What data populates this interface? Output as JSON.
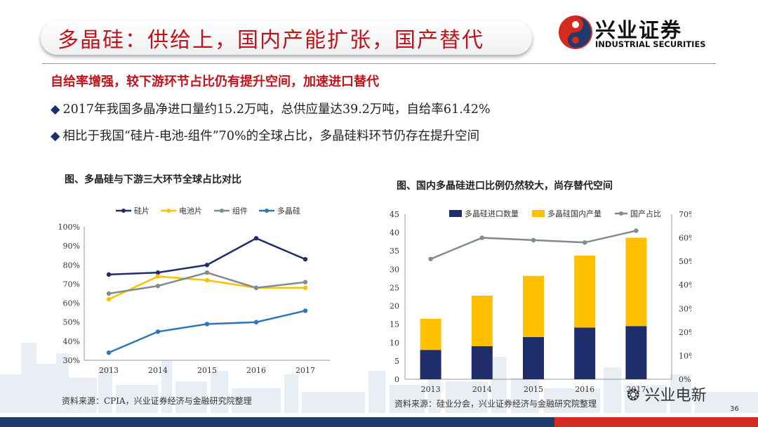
{
  "header": {
    "title": "多晶硅：供给上，国内产能扩张，国产替代",
    "logo_cn": "兴业证券",
    "logo_en": "INDUSTRIAL SECURITIES"
  },
  "subtitle": "自给率增强，较下游环节占比仍有提升空间，加速进口替代",
  "bullets": [
    "2017年我国多晶净进口量约15.2万吨，总供应量达39.2万吨，自给率61.42%",
    "相比于我国“硅片-电池-组件”70%的全球占比，多晶硅料环节仍存在提升空间"
  ],
  "colors": {
    "brand_red": "#c0141b",
    "navy": "#1f2d6b",
    "yellow": "#ffc000",
    "gray": "#7f8c8d",
    "teal": "#2e75b6"
  },
  "icons": {
    "bullet": "diamond-icon",
    "wechat": "wechat-icon"
  },
  "chart_data": [
    {
      "type": "line",
      "title": "图、多晶硅与下游三大环节全球占比对比",
      "x": [
        "2013",
        "2014",
        "2015",
        "2016",
        "2017"
      ],
      "ylim": [
        0.3,
        1.0
      ],
      "yticks": [
        "30%",
        "40%",
        "50%",
        "60%",
        "70%",
        "80%",
        "90%",
        "100%"
      ],
      "legend_position": "top",
      "series": [
        {
          "name": "硅片",
          "color": "#1f2d6b",
          "values": [
            0.75,
            0.76,
            0.8,
            0.94,
            0.83
          ]
        },
        {
          "name": "电池片",
          "color": "#ffc000",
          "values": [
            0.62,
            0.74,
            0.72,
            0.68,
            0.68
          ]
        },
        {
          "name": "组件",
          "color": "#7f8c8d",
          "values": [
            0.65,
            0.69,
            0.76,
            0.68,
            0.71
          ]
        },
        {
          "name": "多晶硅",
          "color": "#2e75b6",
          "values": [
            0.34,
            0.45,
            0.49,
            0.5,
            0.56
          ]
        }
      ],
      "source": "资料来源：CPIA，兴业证券经济与金融研究院整理"
    },
    {
      "type": "bar",
      "stacked": true,
      "title": "图、国内多晶硅进口比例仍然较大，尚存替代空间",
      "categories": [
        "2013",
        "2014",
        "2015",
        "2016",
        "2017"
      ],
      "ylim": [
        0,
        45
      ],
      "yticks": [
        "0",
        "5",
        "10",
        "15",
        "20",
        "25",
        "30",
        "35",
        "40",
        "45"
      ],
      "y2lim": [
        0,
        0.7
      ],
      "y2ticks": [
        "0%",
        "10%",
        "20%",
        "30%",
        "40%",
        "50%",
        "60%",
        "70%"
      ],
      "legend_position": "top",
      "series": [
        {
          "name": "多晶硅进口数量",
          "color": "#1f2d6b",
          "axis": "left",
          "values": [
            8.0,
            9.0,
            11.5,
            14.1,
            14.5
          ]
        },
        {
          "name": "多晶硅国内产量",
          "color": "#ffc000",
          "axis": "left",
          "values": [
            8.5,
            13.8,
            16.7,
            19.6,
            24.1
          ]
        },
        {
          "name": "国产占比",
          "color": "#7f8c8d",
          "axis": "right",
          "type": "line",
          "values": [
            0.51,
            0.6,
            0.59,
            0.58,
            0.63
          ]
        }
      ],
      "source": "资料来源：硅业分会，兴业证券经济与金融研究院整理"
    }
  ],
  "watermark": "兴业电新",
  "page_number": "36"
}
